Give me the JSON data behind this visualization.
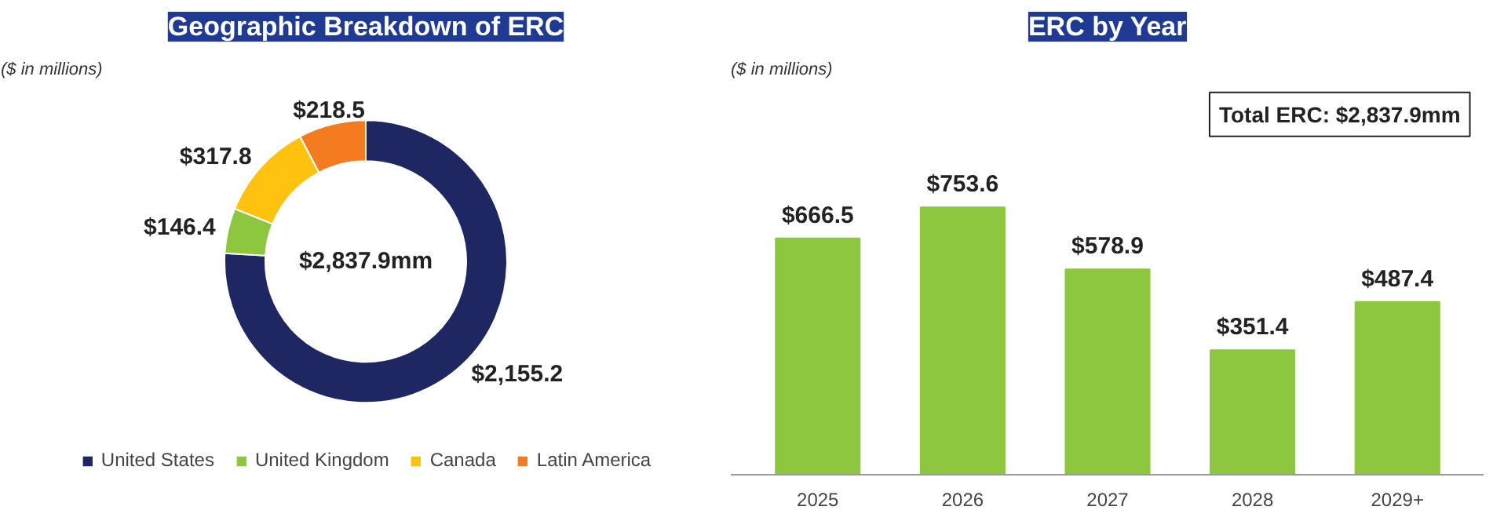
{
  "chart_data": [
    {
      "type": "donut",
      "title": "Geographic Breakdown of ERC",
      "subtitle": "($ in millions)",
      "categories": [
        "United States",
        "United Kingdom",
        "Canada",
        "Latin America"
      ],
      "values": [
        2155.2,
        146.4,
        317.8,
        218.5
      ],
      "colors": [
        "#1e2761",
        "#8dc63f",
        "#ffc20e",
        "#f47b20"
      ],
      "value_labels": [
        "$2,155.2",
        "$146.4",
        "$317.8",
        "$218.5"
      ],
      "annotations": [
        "$2,837.9mm"
      ],
      "legend": "bottom"
    },
    {
      "type": "bar",
      "title": "ERC by Year",
      "subtitle": "($ in millions)",
      "categories": [
        "2025",
        "2026",
        "2027",
        "2028",
        "2029+"
      ],
      "values": [
        666.5,
        753.6,
        578.9,
        351.4,
        487.4
      ],
      "color": "#8dc63f",
      "value_labels": [
        "$666.5",
        "$753.6",
        "$578.9",
        "$351.4",
        "$487.4"
      ],
      "annotations": [
        "Total ERC: $2,837.9mm"
      ],
      "grid": false
    }
  ]
}
